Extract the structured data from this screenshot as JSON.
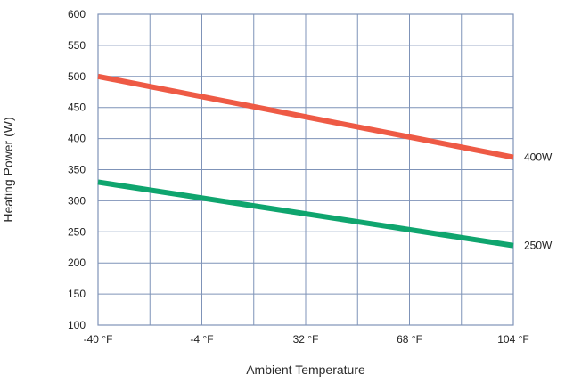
{
  "chart_data": {
    "type": "line",
    "title": "",
    "xlabel": "Ambient Temperature",
    "ylabel": "Heating Power (W)",
    "x_ticks": [
      "-40 °F",
      "-4 °F",
      "32 °F",
      "68 °F",
      "104 °F"
    ],
    "x_tick_values": [
      -40,
      -4,
      32,
      68,
      104
    ],
    "xlim": [
      -40,
      104
    ],
    "x_minor_step": 18,
    "ylim": [
      100,
      600
    ],
    "y_ticks": [
      100,
      150,
      200,
      250,
      300,
      350,
      400,
      450,
      500,
      550,
      600
    ],
    "grid": true,
    "x": [
      -40,
      104
    ],
    "series": [
      {
        "name": "400W",
        "values": [
          500,
          370
        ],
        "color": "#ee5a45"
      },
      {
        "name": "250W",
        "values": [
          330,
          228
        ],
        "color": "#0fa56e"
      }
    ]
  }
}
